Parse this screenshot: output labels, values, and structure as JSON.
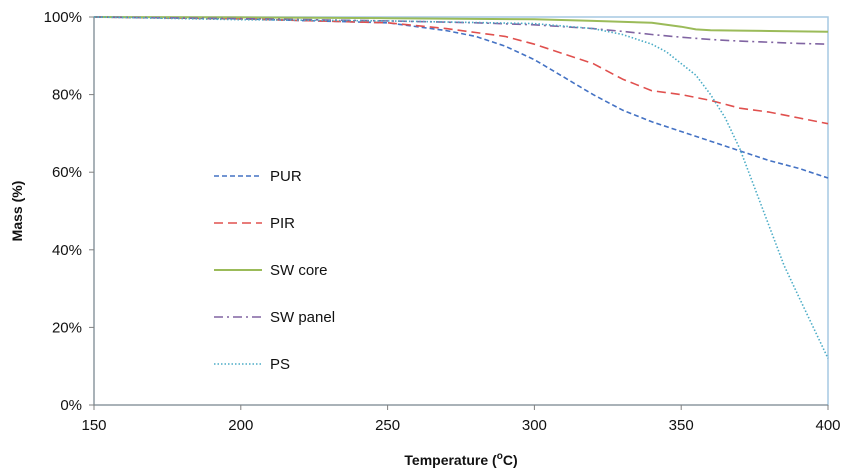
{
  "chart_data": {
    "type": "line",
    "title": "",
    "xlabel_main": "Temperature (",
    "xlabel_sup": "o",
    "xlabel_end": "C)",
    "ylabel": "Mass (%)",
    "xlim": [
      150,
      400
    ],
    "ylim": [
      0,
      100
    ],
    "x_ticks": [
      150,
      200,
      250,
      300,
      350,
      400
    ],
    "y_ticks": [
      0,
      20,
      40,
      60,
      80,
      100
    ],
    "y_tick_labels": [
      "0%",
      "20%",
      "40%",
      "60%",
      "80%",
      "100%"
    ],
    "grid": false,
    "legend_position": "center-left",
    "series": [
      {
        "name": "PUR",
        "color": "#4472C4",
        "dash": "short-dash",
        "x": [
          150,
          200,
          250,
          270,
          280,
          290,
          300,
          310,
          320,
          330,
          340,
          350,
          360,
          370,
          380,
          390,
          400
        ],
        "y": [
          100,
          99.5,
          98.5,
          96.5,
          95,
          92.5,
          89,
          84.5,
          80,
          76,
          73,
          70.5,
          68,
          65.5,
          63,
          61,
          58.5
        ]
      },
      {
        "name": "PIR",
        "color": "#E0504E",
        "dash": "long-dash",
        "x": [
          150,
          200,
          250,
          270,
          280,
          290,
          300,
          310,
          320,
          330,
          340,
          350,
          360,
          370,
          380,
          390,
          400
        ],
        "y": [
          100,
          99.5,
          98.5,
          97,
          96,
          95,
          93,
          90.5,
          88,
          84,
          81,
          80,
          78.5,
          76.5,
          75.5,
          74,
          72.5
        ]
      },
      {
        "name": "SW core",
        "color": "#9BBB59",
        "dash": "solid",
        "x": [
          150,
          200,
          250,
          300,
          320,
          340,
          350,
          355,
          360,
          370,
          380,
          390,
          400
        ],
        "y": [
          100,
          99.9,
          99.7,
          99.4,
          99,
          98.5,
          97.5,
          96.8,
          96.6,
          96.5,
          96.4,
          96.3,
          96.2
        ]
      },
      {
        "name": "SW panel",
        "color": "#8064A2",
        "dash": "dash-dot",
        "x": [
          150,
          200,
          250,
          280,
          300,
          320,
          330,
          340,
          350,
          360,
          370,
          380,
          390,
          400
        ],
        "y": [
          100,
          99.6,
          99,
          98.5,
          98,
          97,
          96.3,
          95.5,
          94.8,
          94.2,
          93.8,
          93.5,
          93.2,
          93
        ]
      },
      {
        "name": "PS",
        "color": "#4BACC6",
        "dash": "dotted",
        "x": [
          150,
          200,
          250,
          300,
          320,
          330,
          340,
          345,
          350,
          355,
          360,
          365,
          370,
          375,
          380,
          385,
          390,
          395,
          400
        ],
        "y": [
          100,
          99.3,
          99,
          98.3,
          97,
          95.5,
          93,
          91,
          88,
          85,
          80,
          74,
          66,
          56,
          46,
          36,
          28,
          20,
          12
        ]
      }
    ]
  }
}
